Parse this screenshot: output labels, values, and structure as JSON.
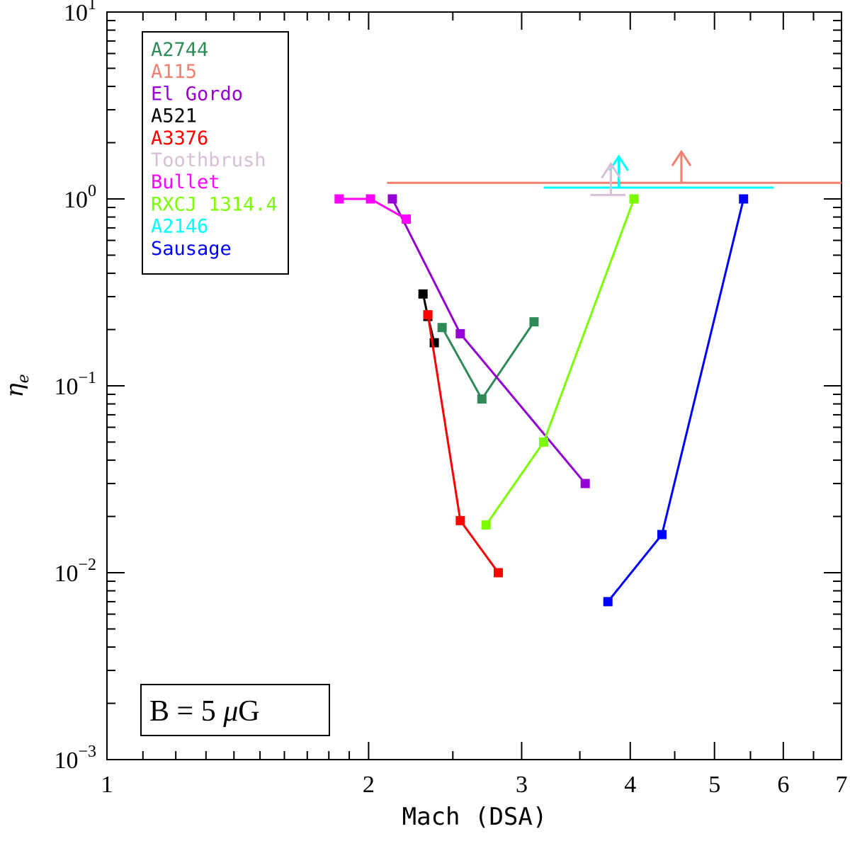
{
  "chart_data": {
    "type": "line",
    "title": "",
    "xlabel": "Mach (DSA)",
    "ylabel": "η",
    "ylabel_sub": "e",
    "xscale": "log",
    "yscale": "log",
    "xlim": [
      1,
      7
    ],
    "ylim": [
      0.001,
      10
    ],
    "x_ticks": [
      {
        "value": 1,
        "label": "1"
      },
      {
        "value": 2,
        "label": "2"
      },
      {
        "value": 3,
        "label": "3"
      },
      {
        "value": 4,
        "label": "4"
      },
      {
        "value": 5,
        "label": "5"
      },
      {
        "value": 6,
        "label": "6"
      },
      {
        "value": 7,
        "label": "7"
      }
    ],
    "y_ticks": [
      {
        "value": 0.001,
        "base": "10",
        "exp": "−3"
      },
      {
        "value": 0.01,
        "base": "10",
        "exp": "−2"
      },
      {
        "value": 0.1,
        "base": "10",
        "exp": "−1"
      },
      {
        "value": 1,
        "base": "10",
        "exp": "0"
      },
      {
        "value": 10,
        "base": "10",
        "exp": "1"
      }
    ],
    "legend_position": "top-left",
    "series": [
      {
        "name": "A2744",
        "color": "#2e8b57",
        "x": [
          2.43,
          2.7,
          3.1
        ],
        "y": [
          0.205,
          0.085,
          0.22
        ]
      },
      {
        "name": "A115",
        "color": "#f08070",
        "x": [],
        "y": []
      },
      {
        "name": "El Gordo",
        "color": "#9400d3",
        "x": [
          2.13,
          2.55,
          3.55
        ],
        "y": [
          1.0,
          0.19,
          0.03
        ]
      },
      {
        "name": "A521",
        "color": "#000000",
        "x": [
          2.31,
          2.34,
          2.38
        ],
        "y": [
          0.31,
          0.235,
          0.17
        ]
      },
      {
        "name": "A3376",
        "color": "#ff0000",
        "x": [
          2.34,
          2.55,
          2.82
        ],
        "y": [
          0.24,
          0.019,
          0.01
        ]
      },
      {
        "name": "Toothbrush",
        "color": "#d8bfd8",
        "x": [],
        "y": []
      },
      {
        "name": "Bullet",
        "color": "#ff00ff",
        "x": [
          1.85,
          2.01,
          2.21
        ],
        "y": [
          1.0,
          1.0,
          0.78
        ]
      },
      {
        "name": "RXCJ 1314.4",
        "color": "#7cfc00",
        "x": [
          2.73,
          3.18,
          4.04
        ],
        "y": [
          0.018,
          0.05,
          1.0
        ]
      },
      {
        "name": "A2146",
        "color": "#00ffff",
        "x": [],
        "y": []
      },
      {
        "name": "Sausage",
        "color": "#0000ff",
        "x": [
          3.77,
          4.35,
          5.4
        ],
        "y": [
          0.007,
          0.016,
          1.0
        ]
      }
    ],
    "lower_limits": [
      {
        "name": "A115",
        "color": "#f08070",
        "x_range": [
          2.1,
          7.0
        ],
        "y": 1.22,
        "arrow_x": 4.58
      },
      {
        "name": "A2146",
        "color": "#00ffff",
        "x_range": [
          3.18,
          5.85
        ],
        "y": 1.15,
        "arrow_x": 3.88
      },
      {
        "name": "Toothbrush",
        "color": "#d8bfd8",
        "x_range": [
          3.6,
          3.95
        ],
        "y": 1.05,
        "arrow_x": 3.8
      }
    ],
    "annotation": {
      "prefix": "B = 5 ",
      "mu": "μ",
      "suffix": "G"
    }
  }
}
